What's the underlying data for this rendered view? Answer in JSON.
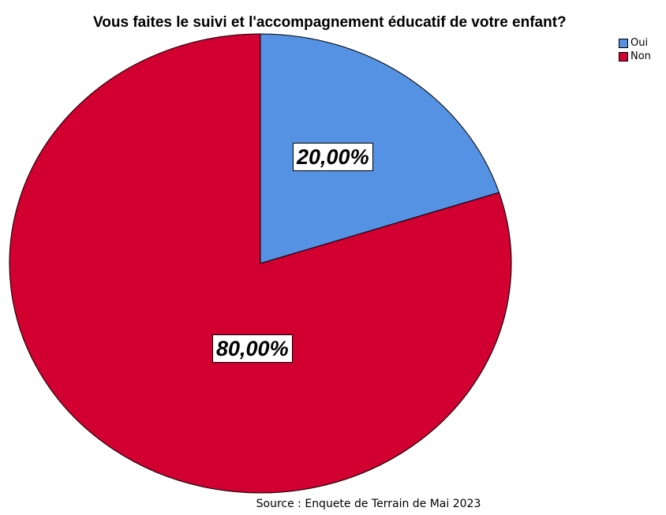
{
  "chart_data": {
    "type": "pie",
    "title": "Vous faites le suivi et l'accompagnement éducatif de votre enfant?",
    "categories": [
      "Oui",
      "Non"
    ],
    "values": [
      20,
      80
    ],
    "data_labels": [
      "20,00%",
      "80,00%"
    ],
    "colors": [
      "#5592e3",
      "#d20030"
    ],
    "legend": {
      "placement": "top-right",
      "entries": [
        "Oui",
        "Non"
      ]
    },
    "source": "Source : Enquete de Terrain de Mai 2023"
  }
}
